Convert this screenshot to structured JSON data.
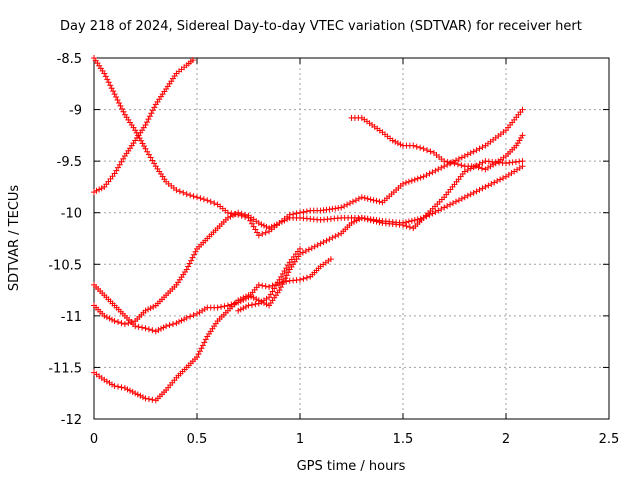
{
  "chart_data": {
    "type": "scatter",
    "title": "Day 218 of 2024, Sidereal Day-to-day VTEC variation (SDTVAR) for receiver hert",
    "xlabel": "GPS time / hours",
    "ylabel": "SDTVAR / TECUs",
    "xlim": [
      0,
      2.5
    ],
    "ylim": [
      -12,
      -8.5
    ],
    "xticks": [
      0,
      0.5,
      1,
      1.5,
      2,
      2.5
    ],
    "yticks": [
      -12,
      -11.5,
      -11,
      -10.5,
      -10,
      -9.5,
      -9,
      -8.5
    ],
    "xtick_labels": [
      "0",
      "0.5",
      "1",
      "1.5",
      "2",
      "2.5"
    ],
    "ytick_labels": [
      "-12",
      "-11.5",
      "-11",
      "-10.5",
      "-10",
      "-9.5",
      "-9",
      "-8.5"
    ],
    "grid": true,
    "marker": "plus",
    "color": "#ff0000",
    "series": [
      {
        "x": [
          0,
          0.05,
          0.1,
          0.15,
          0.2,
          0.25,
          0.3,
          0.35,
          0.4,
          0.45,
          0.5,
          0.55,
          0.6,
          0.65,
          0.7,
          0.75,
          0.8,
          0.85,
          0.9,
          0.95,
          1.0,
          1.1,
          1.2,
          1.3,
          1.4,
          1.5,
          1.6,
          1.7,
          1.8,
          1.9,
          2.0,
          2.08
        ],
        "y": [
          -8.5,
          -8.65,
          -8.85,
          -9.05,
          -9.2,
          -9.38,
          -9.55,
          -9.7,
          -9.78,
          -9.82,
          -9.85,
          -9.88,
          -9.92,
          -10.0,
          -10.02,
          -10.05,
          -10.22,
          -10.18,
          -10.1,
          -10.05,
          -10.05,
          -10.07,
          -10.05,
          -10.05,
          -10.08,
          -10.1,
          -10.05,
          -9.85,
          -9.6,
          -9.5,
          -9.52,
          -9.5
        ]
      },
      {
        "x": [
          0,
          0.05,
          0.1,
          0.15,
          0.2,
          0.25,
          0.3,
          0.35,
          0.4,
          0.45,
          0.48
        ],
        "y": [
          -9.8,
          -9.75,
          -9.62,
          -9.45,
          -9.3,
          -9.15,
          -8.95,
          -8.8,
          -8.65,
          -8.57,
          -8.52
        ]
      },
      {
        "x": [
          0,
          0.05,
          0.1,
          0.15,
          0.2,
          0.25,
          0.3,
          0.35,
          0.4,
          0.45,
          0.5,
          0.55,
          0.6,
          0.65,
          0.7,
          0.75,
          0.8,
          0.85,
          0.9,
          0.95,
          1.0,
          1.05,
          1.1,
          1.15
        ],
        "y": [
          -10.7,
          -10.8,
          -10.9,
          -11.0,
          -11.1,
          -11.12,
          -11.15,
          -11.1,
          -11.07,
          -11.02,
          -10.98,
          -10.92,
          -10.92,
          -10.9,
          -10.87,
          -10.82,
          -10.7,
          -10.72,
          -10.68,
          -10.66,
          -10.65,
          -10.62,
          -10.52,
          -10.45
        ]
      },
      {
        "x": [
          0,
          0.05,
          0.1,
          0.15,
          0.2,
          0.25,
          0.3,
          0.35,
          0.4,
          0.45,
          0.5,
          0.55,
          0.6,
          0.65,
          0.7,
          0.75,
          0.8,
          0.85,
          0.9,
          0.95,
          1.0,
          1.1,
          1.2,
          1.25,
          1.3,
          1.4,
          1.5,
          1.55,
          1.6,
          1.7,
          1.8,
          1.9,
          2.0,
          2.08
        ],
        "y": [
          -11.55,
          -11.62,
          -11.68,
          -11.7,
          -11.75,
          -11.8,
          -11.82,
          -11.72,
          -11.6,
          -11.5,
          -11.4,
          -11.2,
          -11.05,
          -10.95,
          -10.85,
          -10.8,
          -10.85,
          -10.9,
          -10.75,
          -10.55,
          -10.4,
          -10.3,
          -10.2,
          -10.1,
          -10.05,
          -10.1,
          -10.12,
          -10.15,
          -10.05,
          -9.95,
          -9.85,
          -9.75,
          -9.65,
          -9.55
        ]
      },
      {
        "x": [
          0,
          0.05,
          0.1,
          0.15,
          0.2,
          0.25,
          0.3,
          0.35,
          0.4,
          0.45,
          0.5,
          0.55,
          0.6,
          0.65,
          0.7,
          0.75,
          0.8,
          0.85,
          0.9,
          0.95,
          1.0,
          1.05,
          1.1,
          1.2,
          1.3,
          1.4,
          1.5,
          1.6,
          1.7,
          1.8,
          1.9,
          2.0,
          2.08
        ],
        "y": [
          -10.9,
          -11.0,
          -11.05,
          -11.08,
          -11.05,
          -10.95,
          -10.9,
          -10.8,
          -10.7,
          -10.55,
          -10.35,
          -10.25,
          -10.15,
          -10.05,
          -10.0,
          -10.03,
          -10.1,
          -10.15,
          -10.1,
          -10.02,
          -10.0,
          -9.98,
          -9.98,
          -9.95,
          -9.85,
          -9.9,
          -9.72,
          -9.65,
          -9.55,
          -9.45,
          -9.35,
          -9.2,
          -9.0
        ]
      },
      {
        "x": [
          1.25,
          1.3,
          1.35,
          1.4,
          1.45,
          1.5,
          1.55,
          1.6,
          1.65,
          1.7,
          1.75,
          1.8,
          1.85,
          1.9,
          1.95,
          2.0,
          2.05,
          2.08
        ],
        "y": [
          -9.08,
          -9.08,
          -9.15,
          -9.22,
          -9.3,
          -9.35,
          -9.35,
          -9.38,
          -9.42,
          -9.5,
          -9.52,
          -9.55,
          -9.55,
          -9.58,
          -9.52,
          -9.45,
          -9.35,
          -9.25
        ]
      },
      {
        "x": [
          0.7,
          0.75,
          0.8,
          0.85,
          0.9,
          0.95,
          1.0
        ],
        "y": [
          -10.95,
          -10.9,
          -10.88,
          -10.82,
          -10.65,
          -10.48,
          -10.35
        ]
      }
    ]
  }
}
